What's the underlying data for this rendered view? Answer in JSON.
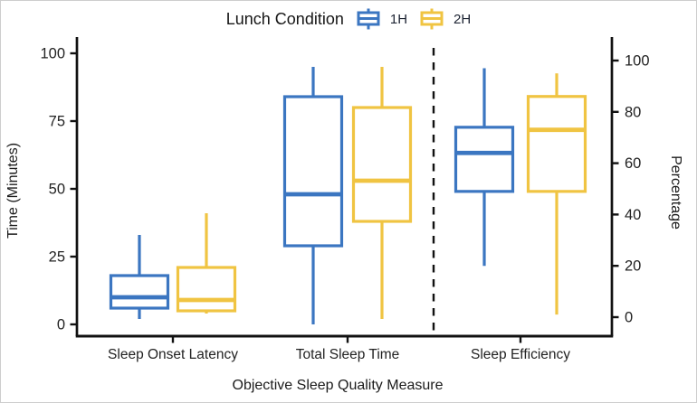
{
  "legend": {
    "title": "Lunch Condition",
    "items": [
      {
        "label": "1H",
        "color": "#3B76C1"
      },
      {
        "label": "2H",
        "color": "#F0C442"
      }
    ]
  },
  "axes": {
    "left_title": "Time (Minutes)",
    "right_title": "Percentage",
    "bottom_title": "Objective Sleep Quality Measure"
  },
  "colors": {
    "axis": "#111111",
    "tick_text": "#222222",
    "divider": "#111111",
    "box_fill": "#ffffff"
  },
  "chart_data": {
    "type": "boxplot",
    "title": "",
    "xlabel": "Objective Sleep Quality Measure",
    "left_axis": {
      "label": "Time (Minutes)",
      "ticks": [
        0,
        25,
        50,
        75,
        100
      ],
      "range": [
        0,
        100
      ]
    },
    "right_axis": {
      "label": "Percentage",
      "ticks": [
        0,
        20,
        40,
        60,
        80,
        100
      ],
      "range": [
        0,
        100
      ]
    },
    "grid": false,
    "legend_position": "top",
    "categories": [
      {
        "label": "Sleep Onset Latency",
        "axis": "left"
      },
      {
        "label": "Total Sleep Time",
        "axis": "left"
      },
      {
        "label": "Sleep Efficiency",
        "axis": "right"
      }
    ],
    "divider_after_category": "Total Sleep Time",
    "series": [
      {
        "name": "1H",
        "color": "#3B76C1",
        "boxes": [
          {
            "category": "Sleep Onset Latency",
            "min": 2,
            "q1": 6,
            "median": 10,
            "q3": 18,
            "max": 33
          },
          {
            "category": "Total Sleep Time",
            "min": 0,
            "q1": 29,
            "median": 48,
            "q3": 84,
            "max": 95
          },
          {
            "category": "Sleep Efficiency",
            "min": 20,
            "q1": 49,
            "median": 64,
            "q3": 74,
            "max": 97
          }
        ]
      },
      {
        "name": "2H",
        "color": "#F0C442",
        "boxes": [
          {
            "category": "Sleep Onset Latency",
            "min": 4,
            "q1": 5,
            "median": 9,
            "q3": 21,
            "max": 41
          },
          {
            "category": "Total Sleep Time",
            "min": 2,
            "q1": 38,
            "median": 53,
            "q3": 80,
            "max": 95
          },
          {
            "category": "Sleep Efficiency",
            "min": 1,
            "q1": 49,
            "median": 73,
            "q3": 86,
            "max": 95
          }
        ]
      }
    ]
  }
}
